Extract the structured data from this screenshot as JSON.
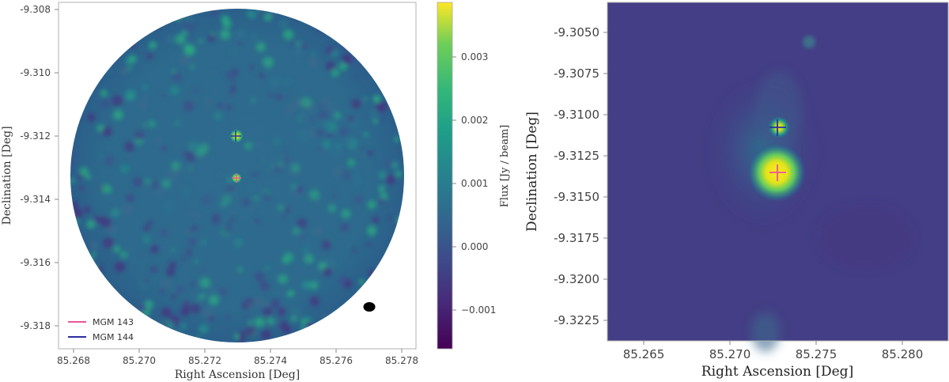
{
  "left_panel": {
    "xlabel": "Right Ascension [Deg]",
    "ylabel": "Declination [Deg]",
    "xticks": [
      "85.268",
      "85.270",
      "85.272",
      "85.274",
      "85.276",
      "85.278"
    ],
    "yticks": [
      "-9.308",
      "-9.310",
      "-9.312",
      "-9.314",
      "-9.316",
      "-9.318"
    ],
    "legend": [
      {
        "label": "MGM 143",
        "color": "#e8559a"
      },
      {
        "label": "MGM 144",
        "color": "#2a2fa0"
      }
    ]
  },
  "colorbar": {
    "label": "Flux [Jy / beam]",
    "ticks": [
      "0.003",
      "0.002",
      "0.001",
      "0.000",
      "−0.001"
    ]
  },
  "right_panel": {
    "xlabel": "Right Ascension [Deg]",
    "ylabel": "Declination [Deg]",
    "xticks": [
      "85.265",
      "85.270",
      "85.275",
      "85.280"
    ],
    "yticks": [
      "-9.3050",
      "-9.3075",
      "-9.3100",
      "-9.3125",
      "-9.3150",
      "-9.3175",
      "-9.3200",
      "-9.3225"
    ]
  },
  "chart_data": [
    {
      "type": "heatmap",
      "title": "",
      "xlabel": "Right Ascension [Deg]",
      "ylabel": "Declination [Deg]",
      "xlim": [
        85.2675,
        85.2783
      ],
      "ylim": [
        -9.3188,
        -9.3078
      ],
      "colorbar": {
        "label": "Flux [Jy / beam]",
        "range": [
          -0.0017,
          0.0039
        ],
        "colormap": "viridis"
      },
      "sources": [
        {
          "name": "MGM 143",
          "ra": 85.273,
          "dec": -9.3134
        },
        {
          "name": "MGM 144",
          "ra": 85.273,
          "dec": -9.312
        }
      ]
    },
    {
      "type": "heatmap",
      "title": "",
      "xlabel": "Right Ascension [Deg]",
      "ylabel": "Declination [Deg]",
      "xlim": [
        85.2632,
        85.283
      ],
      "ylim": [
        -9.3237,
        -9.3029
      ],
      "colormap": "viridis",
      "sources": [
        {
          "name": "MGM 143",
          "ra": 85.2731,
          "dec": -9.3135
        },
        {
          "name": "MGM 144",
          "ra": 85.2731,
          "dec": -9.3108
        }
      ]
    }
  ]
}
